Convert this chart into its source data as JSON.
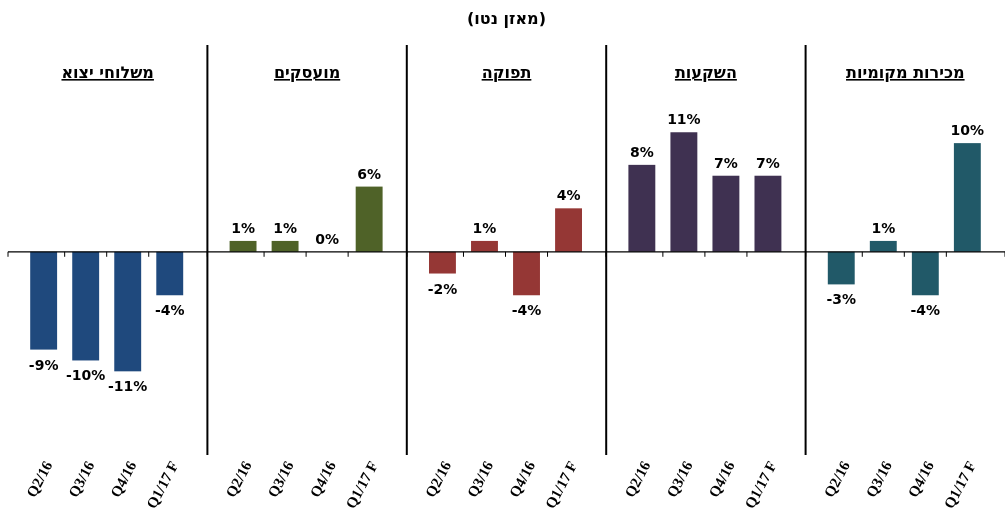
{
  "chart_data": [
    {
      "type": "bar",
      "title": "מכירות מקומיות",
      "annotations": [
        "(מאזן נטו)"
      ],
      "categories": [
        "Q2/16",
        "Q3/16",
        "Q4/16",
        "Q1/17 F"
      ],
      "series": [
        {
          "color": "#215968",
          "values": [
            -3,
            1,
            -4,
            10
          ],
          "value_labels": [
            "-3%",
            "1%",
            "-4%",
            "10%"
          ]
        }
      ]
    },
    {
      "type": "bar",
      "title": "השקעות",
      "categories": [
        "Q2/16",
        "Q3/16",
        "Q4/16",
        "Q1/17 F"
      ],
      "series": [
        {
          "color": "#3f3151",
          "values": [
            8,
            11,
            7,
            7
          ],
          "value_labels": [
            "8%",
            "11%",
            "7%",
            "7%"
          ]
        }
      ]
    },
    {
      "type": "bar",
      "title": "תפוקה",
      "categories": [
        "Q2/16",
        "Q3/16",
        "Q4/16",
        "Q1/17 F"
      ],
      "series": [
        {
          "color": "#953735",
          "values": [
            -2,
            1,
            -4,
            4
          ],
          "value_labels": [
            "-2%",
            "1%",
            "-4%",
            "4%"
          ]
        }
      ]
    },
    {
      "type": "bar",
      "title": "מועסקים",
      "categories": [
        "Q2/16",
        "Q3/16",
        "Q4/16",
        "Q1/17 F"
      ],
      "series": [
        {
          "color": "#4f6228",
          "values": [
            1,
            1,
            0,
            6
          ],
          "value_labels": [
            "1%",
            "1%",
            "0%",
            "6%"
          ]
        }
      ]
    },
    {
      "type": "bar",
      "title": "משלוחי יצוא",
      "categories": [
        "Q2/16",
        "Q3/16",
        "Q4/16",
        "Q1/17 F"
      ],
      "series": [
        {
          "color": "#1f497d",
          "values": [
            -9,
            -10,
            -11,
            -4
          ],
          "value_labels": [
            "-9%",
            "-10%",
            "-11%",
            "-4%"
          ]
        }
      ]
    }
  ]
}
